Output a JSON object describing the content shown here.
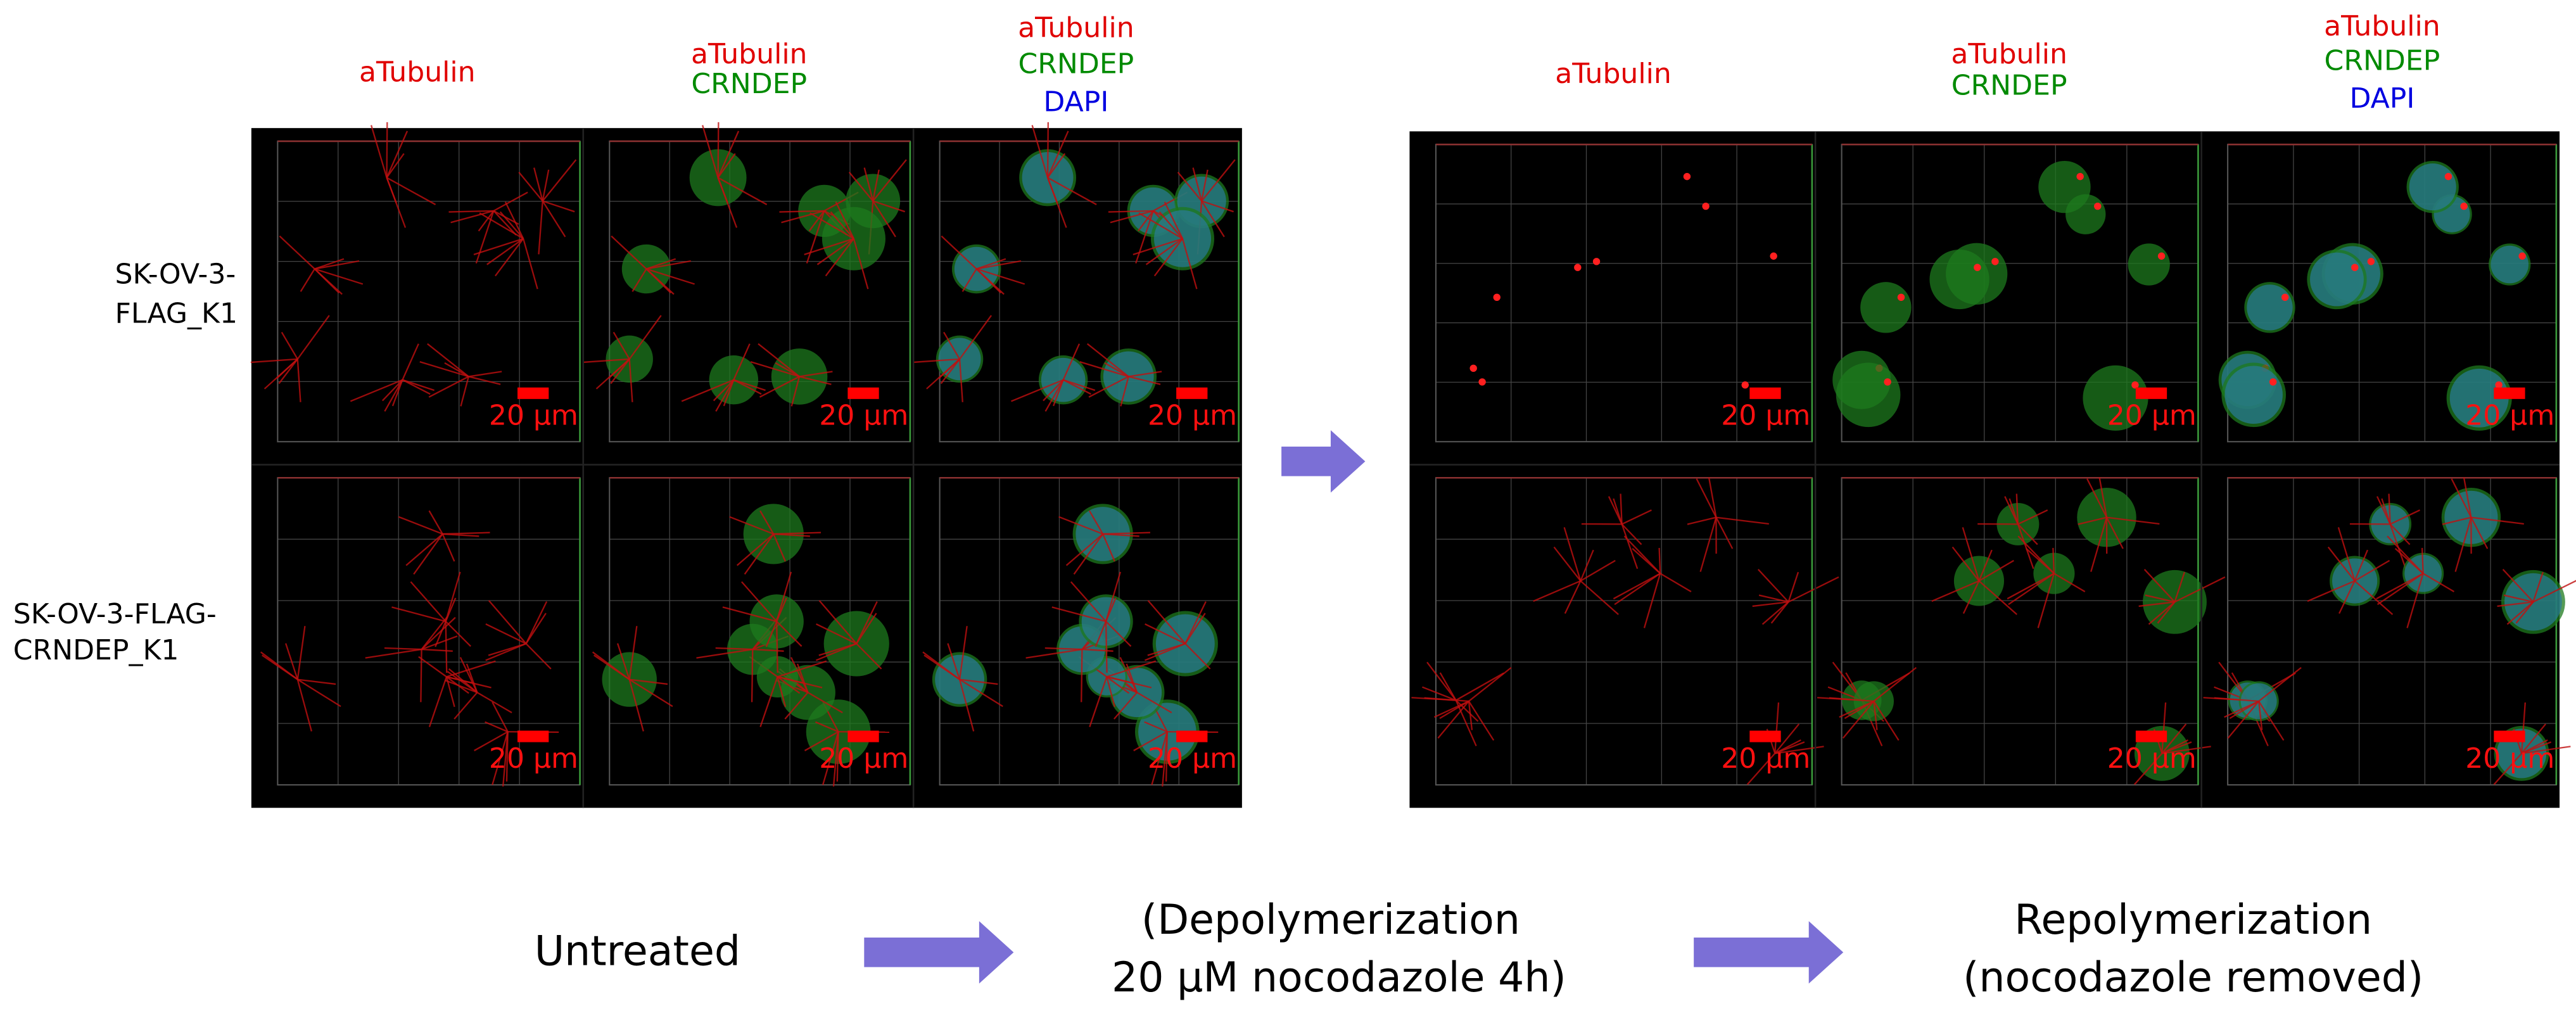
{
  "blocks": [
    {
      "columns": [
        [
          "aTubulin"
        ],
        [
          "aTubulin",
          "CRNDEP"
        ],
        [
          "aTubulin",
          "CRNDEP",
          "DAPI"
        ]
      ],
      "panels": [
        [
          "20 µm",
          "20 µm",
          "20 µm"
        ],
        [
          "20 µm",
          "20 µm",
          "20 µm"
        ]
      ]
    },
    {
      "columns": [
        [
          "aTubulin"
        ],
        [
          "aTubulin",
          "CRNDEP"
        ],
        [
          "aTubulin",
          "CRNDEP",
          "DAPI"
        ]
      ],
      "panels": [
        [
          "20 µm",
          "20 µm",
          "20 µm"
        ],
        [
          "20 µm",
          "20 µm",
          "20 µm"
        ]
      ]
    }
  ],
  "row_labels": [
    [
      "SK-OV-3-",
      "FLAG_K1"
    ],
    [
      "SK-OV-3-FLAG-",
      "CRNDEP_K1"
    ]
  ],
  "stages": {
    "untreated": "Untreated",
    "depolymerization": [
      "(Depolymerization",
      "20 µM nocodazole 4h)"
    ],
    "repolymerization": [
      "Repolymerization",
      "(nocodazole removed)"
    ]
  }
}
